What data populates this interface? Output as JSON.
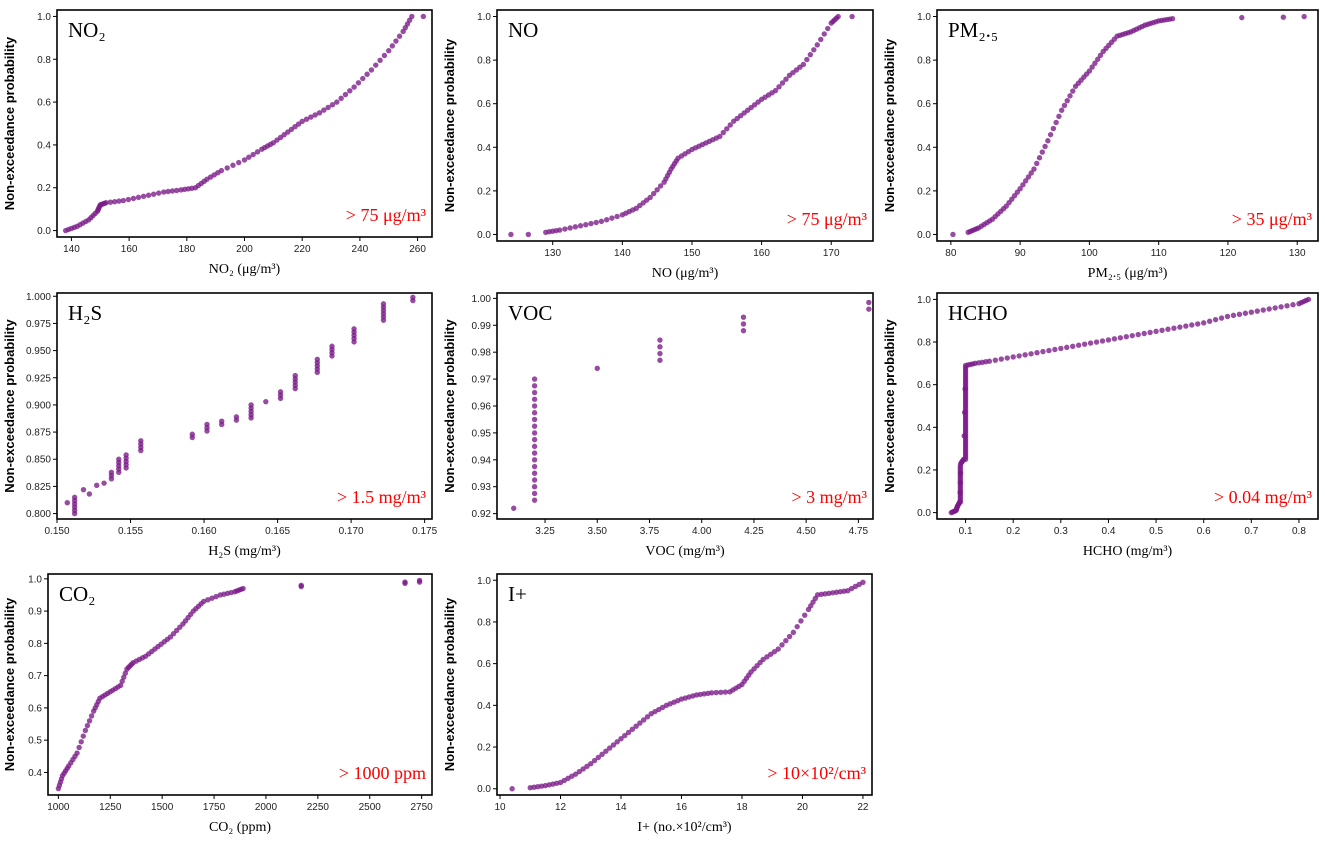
{
  "figure": {
    "ylabel_common": "Non-exceedance probability",
    "marker_color": "#7a1a88",
    "threshold_color": "#ff0000"
  },
  "chart_data": [
    {
      "type": "scatter",
      "title": "NO₂",
      "xlabel": "NO₂ (μg/m³)",
      "ylabel": "Non-exceedance probability",
      "annotation": "> 75 μg/m³",
      "xlim": [
        135,
        265
      ],
      "ylim": [
        -0.03,
        1.03
      ],
      "xticks": [
        140,
        160,
        180,
        200,
        220,
        240,
        260
      ],
      "xtick_labels": [
        "140",
        "160",
        "180",
        "200",
        "220",
        "240",
        "260"
      ],
      "yticks": [
        0,
        0.2,
        0.4,
        0.6,
        0.8,
        1.0
      ],
      "ytick_labels": [
        "0.0",
        "0.2",
        "0.4",
        "0.6",
        "0.8",
        "1.0"
      ],
      "curve": [
        [
          138,
          0.0
        ],
        [
          142,
          0.02
        ],
        [
          146,
          0.05
        ],
        [
          149,
          0.09
        ],
        [
          150,
          0.12
        ],
        [
          152,
          0.13
        ],
        [
          158,
          0.14
        ],
        [
          165,
          0.16
        ],
        [
          172,
          0.18
        ],
        [
          178,
          0.19
        ],
        [
          183,
          0.2
        ],
        [
          187,
          0.24
        ],
        [
          192,
          0.28
        ],
        [
          200,
          0.33
        ],
        [
          206,
          0.38
        ],
        [
          210,
          0.41
        ],
        [
          215,
          0.46
        ],
        [
          220,
          0.51
        ],
        [
          226,
          0.55
        ],
        [
          232,
          0.6
        ],
        [
          238,
          0.67
        ],
        [
          244,
          0.75
        ],
        [
          250,
          0.84
        ],
        [
          255,
          0.93
        ],
        [
          258,
          1.0
        ]
      ],
      "extra_points": [
        [
          262,
          1.0
        ]
      ],
      "n_points": 85
    },
    {
      "type": "scatter",
      "title": "NO",
      "xlabel": "NO (μg/m³)",
      "ylabel": "Non-exceedance probability",
      "annotation": "> 75 μg/m³",
      "xlim": [
        122,
        176
      ],
      "ylim": [
        -0.03,
        1.03
      ],
      "xticks": [
        130,
        140,
        150,
        160,
        170
      ],
      "xtick_labels": [
        "130",
        "140",
        "150",
        "160",
        "170"
      ],
      "yticks": [
        0,
        0.2,
        0.4,
        0.6,
        0.8,
        1.0
      ],
      "ytick_labels": [
        "0.0",
        "0.2",
        "0.4",
        "0.6",
        "0.8",
        "1.0"
      ],
      "curve": [
        [
          129,
          0.01
        ],
        [
          131,
          0.02
        ],
        [
          134,
          0.04
        ],
        [
          137,
          0.06
        ],
        [
          140,
          0.09
        ],
        [
          142,
          0.12
        ],
        [
          144,
          0.17
        ],
        [
          146,
          0.24
        ],
        [
          147,
          0.3
        ],
        [
          148,
          0.35
        ],
        [
          150,
          0.39
        ],
        [
          152,
          0.42
        ],
        [
          154,
          0.45
        ],
        [
          156,
          0.52
        ],
        [
          158,
          0.57
        ],
        [
          160,
          0.62
        ],
        [
          162,
          0.66
        ],
        [
          164,
          0.73
        ],
        [
          166,
          0.78
        ],
        [
          168,
          0.87
        ],
        [
          170,
          0.97
        ],
        [
          171,
          1.0
        ]
      ],
      "extra_points": [
        [
          124,
          0.0
        ],
        [
          126.5,
          0.0
        ],
        [
          173,
          1.0
        ]
      ],
      "n_points": 75
    },
    {
      "type": "scatter",
      "title": "PM₂.₅",
      "xlabel": "PM₂.₅ (μg/m³)",
      "ylabel": "Non-exceedance probability",
      "annotation": "> 35 μg/m³",
      "xlim": [
        78,
        133
      ],
      "ylim": [
        -0.03,
        1.03
      ],
      "xticks": [
        80,
        90,
        100,
        110,
        120,
        130
      ],
      "xtick_labels": [
        "80",
        "90",
        "100",
        "110",
        "120",
        "130"
      ],
      "yticks": [
        0,
        0.2,
        0.4,
        0.6,
        0.8,
        1.0
      ],
      "ytick_labels": [
        "0.0",
        "0.2",
        "0.4",
        "0.6",
        "0.8",
        "1.0"
      ],
      "curve": [
        [
          82.5,
          0.01
        ],
        [
          84,
          0.03
        ],
        [
          86,
          0.07
        ],
        [
          88,
          0.13
        ],
        [
          90,
          0.21
        ],
        [
          92,
          0.3
        ],
        [
          94,
          0.43
        ],
        [
          96,
          0.57
        ],
        [
          98,
          0.68
        ],
        [
          100,
          0.75
        ],
        [
          102,
          0.84
        ],
        [
          104,
          0.91
        ],
        [
          106,
          0.93
        ],
        [
          108,
          0.96
        ],
        [
          110,
          0.98
        ],
        [
          112,
          0.99
        ]
      ],
      "extra_points": [
        [
          80.3,
          0.0
        ],
        [
          122,
          0.995
        ],
        [
          128,
          0.997
        ],
        [
          131,
          1.0
        ]
      ],
      "n_points": 80
    },
    {
      "type": "scatter",
      "title": "H₂S",
      "xlabel": "H₂S (mg/m³)",
      "ylabel": "Non-exceedance probability",
      "annotation": "> 1.5 mg/m³",
      "xlim": [
        0.15,
        0.1755
      ],
      "ylim": [
        0.795,
        1.003
      ],
      "xticks": [
        0.15,
        0.155,
        0.16,
        0.165,
        0.17,
        0.175
      ],
      "xtick_labels": [
        "0.150",
        "0.155",
        "0.160",
        "0.165",
        "0.170",
        "0.175"
      ],
      "yticks": [
        0.8,
        0.825,
        0.85,
        0.875,
        0.9,
        0.925,
        0.95,
        0.975,
        1.0
      ],
      "ytick_labels": [
        "0.800",
        "0.825",
        "0.850",
        "0.875",
        "0.900",
        "0.925",
        "0.950",
        "0.975",
        "1.000"
      ],
      "columns": [
        [
          0.1507,
          0.81,
          0.81
        ],
        [
          0.1512,
          0.8,
          0.815
        ],
        [
          0.1518,
          0.822,
          0.822
        ],
        [
          0.1522,
          0.818,
          0.818
        ],
        [
          0.1527,
          0.826,
          0.826
        ],
        [
          0.1532,
          0.828,
          0.83
        ],
        [
          0.1537,
          0.832,
          0.84
        ],
        [
          0.1542,
          0.838,
          0.852
        ],
        [
          0.1547,
          0.842,
          0.855
        ],
        [
          0.1557,
          0.858,
          0.868
        ],
        [
          0.1592,
          0.87,
          0.875
        ],
        [
          0.1602,
          0.876,
          0.882
        ],
        [
          0.1612,
          0.882,
          0.885
        ],
        [
          0.1622,
          0.886,
          0.89
        ],
        [
          0.1632,
          0.888,
          0.9
        ],
        [
          0.1642,
          0.903,
          0.903
        ],
        [
          0.1652,
          0.906,
          0.912
        ],
        [
          0.1662,
          0.915,
          0.928
        ],
        [
          0.1677,
          0.93,
          0.942
        ],
        [
          0.1687,
          0.945,
          0.955
        ],
        [
          0.1702,
          0.958,
          0.97
        ],
        [
          0.1722,
          0.978,
          0.995
        ],
        [
          0.1742,
          0.996,
          1.0
        ]
      ],
      "step": 0.003
    },
    {
      "type": "scatter",
      "title": "VOC",
      "xlabel": "VOC (mg/m³)",
      "ylabel": "Non-exceedance probability",
      "annotation": "> 3 mg/m³",
      "xlim": [
        3.02,
        4.82
      ],
      "ylim": [
        0.918,
        1.002
      ],
      "xticks": [
        3.25,
        3.5,
        3.75,
        4.0,
        4.25,
        4.5,
        4.75
      ],
      "xtick_labels": [
        "3.25",
        "3.50",
        "3.75",
        "4.00",
        "4.25",
        "4.50",
        "4.75"
      ],
      "yticks": [
        0.92,
        0.93,
        0.94,
        0.95,
        0.96,
        0.97,
        0.98,
        0.99,
        1.0
      ],
      "ytick_labels": [
        "0.92",
        "0.93",
        "0.94",
        "0.95",
        "0.96",
        "0.97",
        "0.98",
        "0.99",
        "1.00"
      ],
      "columns": [
        [
          3.1,
          0.922,
          0.922
        ],
        [
          3.2,
          0.925,
          0.971
        ],
        [
          3.5,
          0.974,
          0.974
        ],
        [
          3.8,
          0.977,
          0.985
        ],
        [
          4.2,
          0.988,
          0.993
        ],
        [
          4.8,
          0.996,
          0.999
        ]
      ],
      "step": 0.0025
    },
    {
      "type": "scatter",
      "title": "HCHO",
      "xlabel": "HCHO (mg/m³)",
      "ylabel": "Non-exceedance probability",
      "annotation": "> 0.04 mg/m³",
      "xlim": [
        0.04,
        0.84
      ],
      "ylim": [
        -0.03,
        1.03
      ],
      "xticks": [
        0.1,
        0.2,
        0.3,
        0.4,
        0.5,
        0.6,
        0.7,
        0.8
      ],
      "xtick_labels": [
        "0.1",
        "0.2",
        "0.3",
        "0.4",
        "0.5",
        "0.6",
        "0.7",
        "0.8"
      ],
      "yticks": [
        0,
        0.2,
        0.4,
        0.6,
        0.8,
        1.0
      ],
      "ytick_labels": [
        "0.0",
        "0.2",
        "0.4",
        "0.6",
        "0.8",
        "1.0"
      ],
      "curve": [
        [
          0.07,
          0.0
        ],
        [
          0.08,
          0.01
        ],
        [
          0.083,
          0.03
        ],
        [
          0.088,
          0.05
        ],
        [
          0.09,
          0.23
        ],
        [
          0.096,
          0.25
        ],
        [
          0.1,
          0.69
        ],
        [
          0.12,
          0.7
        ],
        [
          0.15,
          0.71
        ],
        [
          0.2,
          0.73
        ],
        [
          0.25,
          0.75
        ],
        [
          0.3,
          0.77
        ],
        [
          0.35,
          0.79
        ],
        [
          0.4,
          0.81
        ],
        [
          0.45,
          0.83
        ],
        [
          0.5,
          0.85
        ],
        [
          0.55,
          0.87
        ],
        [
          0.6,
          0.89
        ],
        [
          0.65,
          0.92
        ],
        [
          0.7,
          0.94
        ],
        [
          0.75,
          0.96
        ],
        [
          0.8,
          0.98
        ],
        [
          0.82,
          1.0
        ]
      ],
      "extra_points": [],
      "n_points": 90
    },
    {
      "type": "scatter",
      "title": "CO₂",
      "xlabel": "CO₂ (ppm)",
      "ylabel": "Non-exceedance probability",
      "annotation": "> 1000 ppm",
      "xlim": [
        950,
        2800
      ],
      "ylim": [
        0.33,
        1.015
      ],
      "xticks": [
        1000,
        1250,
        1500,
        1750,
        2000,
        2250,
        2500,
        2750
      ],
      "xtick_labels": [
        "1000",
        "1250",
        "1500",
        "1750",
        "2000",
        "2250",
        "2500",
        "2750"
      ],
      "yticks": [
        0.4,
        0.5,
        0.6,
        0.7,
        0.8,
        0.9,
        1.0
      ],
      "ytick_labels": [
        "0.4",
        "0.5",
        "0.6",
        "0.7",
        "0.8",
        "0.9",
        "1.0"
      ],
      "curve": [
        [
          1000,
          0.35
        ],
        [
          1020,
          0.39
        ],
        [
          1050,
          0.42
        ],
        [
          1090,
          0.46
        ],
        [
          1130,
          0.53
        ],
        [
          1170,
          0.59
        ],
        [
          1200,
          0.63
        ],
        [
          1250,
          0.65
        ],
        [
          1300,
          0.67
        ],
        [
          1330,
          0.72
        ],
        [
          1360,
          0.74
        ],
        [
          1420,
          0.76
        ],
        [
          1480,
          0.79
        ],
        [
          1540,
          0.82
        ],
        [
          1600,
          0.86
        ],
        [
          1650,
          0.9
        ],
        [
          1700,
          0.93
        ],
        [
          1780,
          0.95
        ],
        [
          1850,
          0.96
        ],
        [
          1890,
          0.97
        ]
      ],
      "extra_points": [
        [
          2170,
          0.98
        ],
        [
          2170,
          0.976
        ],
        [
          2670,
          0.99
        ],
        [
          2670,
          0.986
        ],
        [
          2740,
          0.995
        ],
        [
          2740,
          0.99
        ]
      ],
      "n_points": 80
    },
    {
      "type": "scatter",
      "title": "I+",
      "xlabel": "I+ (no.×10²/cm³)",
      "ylabel": "Non-exceedance probability",
      "annotation": "> 10×10²/cm³",
      "xlim": [
        9.9,
        22.3
      ],
      "ylim": [
        -0.03,
        1.03
      ],
      "xticks": [
        10,
        12,
        14,
        16,
        18,
        20,
        22
      ],
      "xtick_labels": [
        "10",
        "12",
        "14",
        "16",
        "18",
        "20",
        "22"
      ],
      "yticks": [
        0,
        0.2,
        0.4,
        0.6,
        0.8,
        1.0
      ],
      "ytick_labels": [
        "0.0",
        "0.2",
        "0.4",
        "0.6",
        "0.8",
        "1.0"
      ],
      "curve": [
        [
          11,
          0.005
        ],
        [
          11.5,
          0.015
        ],
        [
          12,
          0.03
        ],
        [
          12.5,
          0.07
        ],
        [
          13,
          0.12
        ],
        [
          13.5,
          0.18
        ],
        [
          14,
          0.24
        ],
        [
          14.5,
          0.3
        ],
        [
          15,
          0.36
        ],
        [
          15.5,
          0.4
        ],
        [
          16,
          0.43
        ],
        [
          16.5,
          0.45
        ],
        [
          17,
          0.46
        ],
        [
          17.6,
          0.465
        ],
        [
          18,
          0.5
        ],
        [
          18.3,
          0.56
        ],
        [
          18.7,
          0.62
        ],
        [
          19.2,
          0.67
        ],
        [
          19.7,
          0.75
        ],
        [
          20.2,
          0.86
        ],
        [
          20.5,
          0.93
        ],
        [
          21,
          0.94
        ],
        [
          21.5,
          0.95
        ],
        [
          22,
          0.99
        ]
      ],
      "extra_points": [
        [
          10.4,
          0.0
        ]
      ],
      "n_points": 100
    }
  ]
}
